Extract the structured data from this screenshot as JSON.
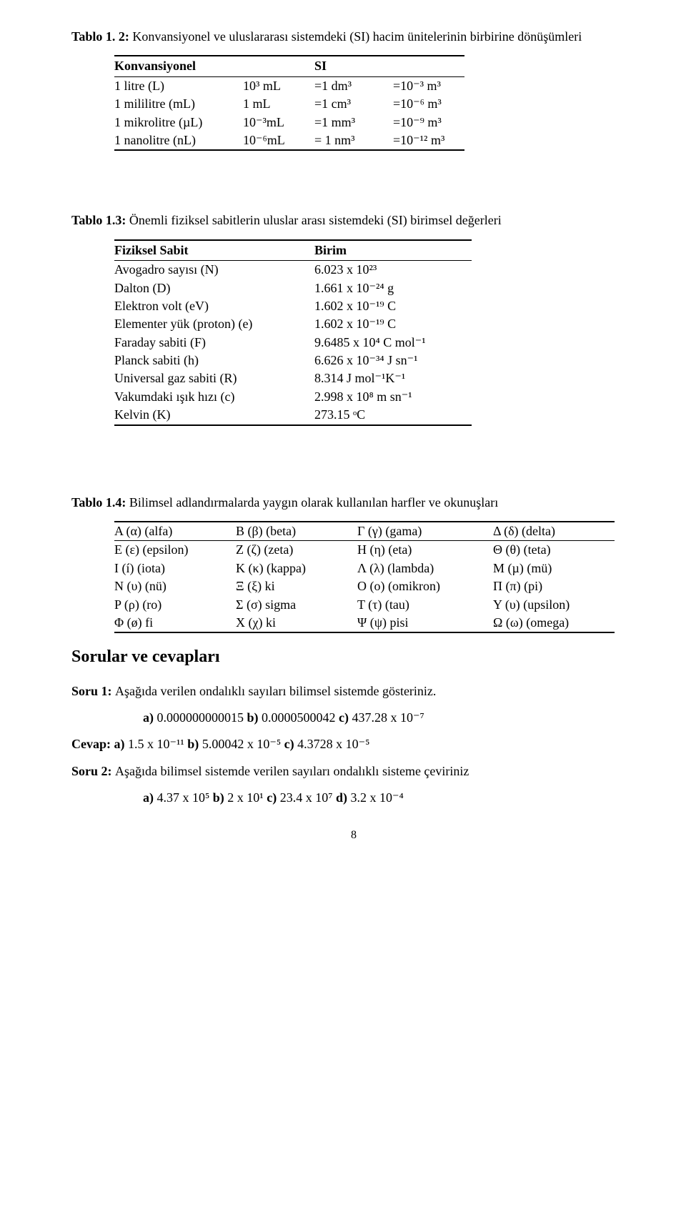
{
  "t12": {
    "label": "Tablo 1. 2:",
    "caption": " Konvansiyonel ve uluslararası sistemdeki (SI) hacim ünitelerinin birbirine dönüşümleri",
    "head": [
      "Konvansiyonel",
      "",
      "SI",
      ""
    ],
    "rows": [
      [
        "1 litre (L)",
        "10³ mL",
        "=1 dm³",
        "=10⁻³ m³"
      ],
      [
        "1 mililitre (mL)",
        "1 mL",
        "=1 cm³",
        "=10⁻⁶ m³"
      ],
      [
        "1 mikrolitre (µL)",
        "10⁻³mL",
        "=1 mm³",
        "=10⁻⁹ m³"
      ],
      [
        "1 nanolitre (nL)",
        "10⁻⁶mL",
        "= 1 nm³",
        "=10⁻¹² m³"
      ]
    ]
  },
  "t13": {
    "label": "Tablo 1.3:",
    "caption": " Önemli fiziksel sabitlerin uluslar arası sistemdeki (SI)  birimsel değerleri",
    "head": [
      "Fiziksel Sabit",
      "Birim"
    ],
    "rows": [
      [
        "Avogadro sayısı (N)",
        "6.023 x 10²³"
      ],
      [
        "Dalton (D)",
        "1.661 x 10⁻²⁴ g"
      ],
      [
        "Elektron volt (eV)",
        "1.602 x 10⁻¹⁹ C"
      ],
      [
        "Elementer yük (proton) (e)",
        "1.602 x 10⁻¹⁹ C"
      ],
      [
        "Faraday sabiti (F)",
        "9.6485 x 10⁴ C mol⁻¹"
      ],
      [
        "Planck sabiti (h)",
        "6.626 x 10⁻³⁴ J sn⁻¹"
      ],
      [
        "Universal gaz sabiti (R)",
        "8.314 J mol⁻¹K⁻¹"
      ],
      [
        "Vakumdaki ışık hızı (c)",
        "2.998 x 10⁸ m sn⁻¹"
      ],
      [
        "Kelvin (K)",
        "273.15 ᵒC"
      ]
    ]
  },
  "t14": {
    "label": "Tablo 1.4:",
    "caption": " Bilimsel adlandırmalarda yaygın olarak kullanılan harfler ve okunuşları",
    "rows": [
      [
        "A (α) (alfa)",
        "B (β) (beta)",
        "Γ (γ) (gama)",
        "Δ (δ) (delta)"
      ],
      [
        "E (ε) (epsilon)",
        "Z (ζ) (zeta)",
        "H (η) (eta)",
        "Θ (θ) (teta)"
      ],
      [
        "I (í) (iota)",
        "K (κ) (kappa)",
        "Λ (λ) (lambda)",
        "M (µ) (mü)"
      ],
      [
        "N (υ) (nü)",
        "Ξ (ξ) ki",
        "O (o) (omikron)",
        "Π (π) (pi)"
      ],
      [
        "P (ρ) (ro)",
        "Σ (σ) sigma",
        "T (τ) (tau)",
        "Y (υ) (upsilon)"
      ],
      [
        "Φ (ø) fi",
        "X (χ) ki",
        "Ψ (ψ) pisi",
        "Ω (ω) (omega)"
      ]
    ]
  },
  "sorular_heading": "Sorular ve cevapları",
  "soru1": {
    "label": "Soru 1: ",
    "text": "Aşağıda verilen ondalıklı sayıları bilimsel sistemde gösteriniz.",
    "opts_html": "<b>a)</b> 0.000000000015 <b>b)</b> 0.0000500042 <b>c)</b> 437.28 x 10⁻⁷"
  },
  "cevap1": {
    "label": "Cevap: a) ",
    "text_html": "1.5 x 10⁻¹¹ <b>b)</b> 5.00042 x 10⁻⁵ <b>c)</b> 4.3728 x 10⁻⁵"
  },
  "soru2": {
    "label": "Soru 2: ",
    "text": "Aşağıda bilimsel sistemde verilen sayıları ondalıklı sisteme çeviriniz",
    "opts_html": "<b>a)</b> 4.37 x 10⁵ <b>b)</b> 2 x 10¹ <b>c)</b> 23.4 x 10⁷ <b>d)</b> 3.2 x 10⁻⁴"
  },
  "page_number": "8"
}
